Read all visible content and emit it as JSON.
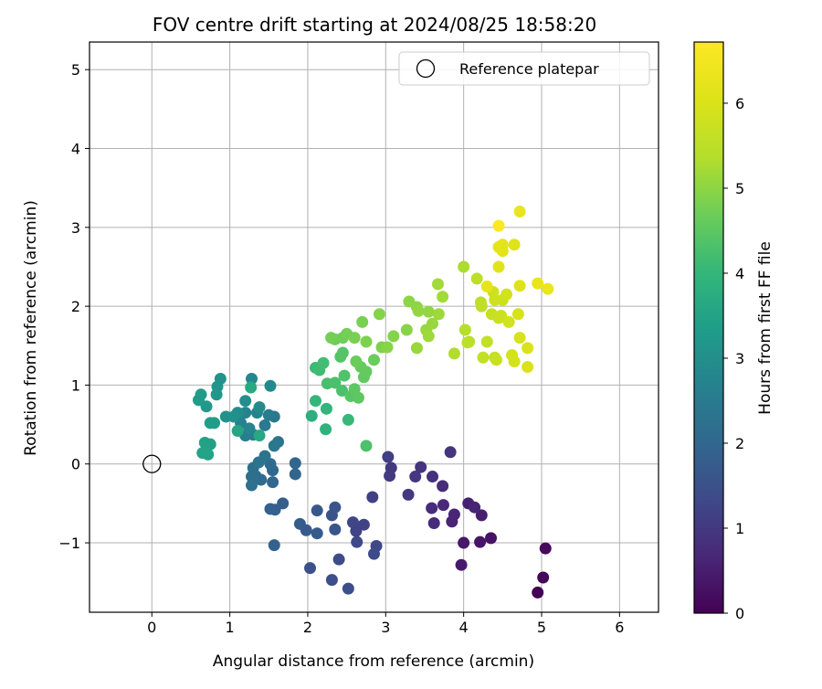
{
  "chart_data": {
    "type": "scatter",
    "title": "FOV centre drift starting at 2024/08/25 18:58:20",
    "xlabel": "Angular distance from reference (arcmin)",
    "ylabel": "Rotation from reference (arcmin)",
    "xlim": [
      -0.8,
      6.5
    ],
    "ylim": [
      -1.88,
      5.35
    ],
    "xticks": [
      0,
      1,
      2,
      3,
      4,
      5,
      6
    ],
    "yticks": [
      -1,
      0,
      1,
      2,
      3,
      4,
      5
    ],
    "xtick_labels": [
      "0",
      "1",
      "2",
      "3",
      "4",
      "5",
      "6"
    ],
    "ytick_labels": [
      "−1",
      "0",
      "1",
      "2",
      "3",
      "4",
      "5"
    ],
    "grid": true,
    "legend": {
      "placement": "top-right",
      "entries": [
        "Reference platepar"
      ]
    },
    "reference_point": {
      "x": 0,
      "y": 0,
      "label": "Reference platepar"
    },
    "colorbar": {
      "label": "Hours from first FF file",
      "colormap": "viridis",
      "range": [
        0,
        6.72
      ],
      "ticks": [
        0,
        1,
        2,
        3,
        4,
        5,
        6
      ],
      "tick_labels": [
        "0",
        "1",
        "2",
        "3",
        "4",
        "5",
        "6"
      ]
    },
    "points": [
      {
        "x": 4.95,
        "y": -1.63,
        "h": 0.0
      },
      {
        "x": 5.02,
        "y": -1.44,
        "h": 0.1
      },
      {
        "x": 5.05,
        "y": -1.07,
        "h": 0.15
      },
      {
        "x": 4.35,
        "y": -0.94,
        "h": 0.3
      },
      {
        "x": 4.21,
        "y": -0.99,
        "h": 0.35
      },
      {
        "x": 4.0,
        "y": -1.0,
        "h": 0.4
      },
      {
        "x": 3.97,
        "y": -1.28,
        "h": 0.45
      },
      {
        "x": 4.23,
        "y": -0.65,
        "h": 0.5
      },
      {
        "x": 4.06,
        "y": -0.5,
        "h": 0.55
      },
      {
        "x": 4.14,
        "y": -0.55,
        "h": 0.6
      },
      {
        "x": 3.85,
        "y": -0.73,
        "h": 0.6
      },
      {
        "x": 3.88,
        "y": -0.64,
        "h": 0.65
      },
      {
        "x": 3.74,
        "y": -0.52,
        "h": 0.7
      },
      {
        "x": 3.62,
        "y": -0.75,
        "h": 0.75
      },
      {
        "x": 3.59,
        "y": -0.56,
        "h": 0.75
      },
      {
        "x": 3.73,
        "y": -0.28,
        "h": 0.8
      },
      {
        "x": 3.6,
        "y": -0.16,
        "h": 0.85
      },
      {
        "x": 3.45,
        "y": -0.04,
        "h": 0.9
      },
      {
        "x": 3.83,
        "y": 0.15,
        "h": 0.9
      },
      {
        "x": 3.38,
        "y": -0.16,
        "h": 0.95
      },
      {
        "x": 3.29,
        "y": -0.39,
        "h": 1.0
      },
      {
        "x": 3.07,
        "y": -0.05,
        "h": 1.0
      },
      {
        "x": 3.05,
        "y": -0.15,
        "h": 1.05
      },
      {
        "x": 3.03,
        "y": 0.09,
        "h": 1.1
      },
      {
        "x": 2.83,
        "y": -0.42,
        "h": 1.15
      },
      {
        "x": 2.72,
        "y": -0.77,
        "h": 1.2
      },
      {
        "x": 2.62,
        "y": -0.85,
        "h": 1.2
      },
      {
        "x": 2.58,
        "y": -0.74,
        "h": 1.25
      },
      {
        "x": 2.63,
        "y": -0.99,
        "h": 1.3
      },
      {
        "x": 2.88,
        "y": -1.04,
        "h": 1.3
      },
      {
        "x": 2.85,
        "y": -1.14,
        "h": 1.35
      },
      {
        "x": 2.4,
        "y": -1.21,
        "h": 1.4
      },
      {
        "x": 2.31,
        "y": -1.47,
        "h": 1.45
      },
      {
        "x": 2.52,
        "y": -1.58,
        "h": 1.45
      },
      {
        "x": 2.03,
        "y": -1.32,
        "h": 1.5
      },
      {
        "x": 2.31,
        "y": -0.65,
        "h": 1.55
      },
      {
        "x": 2.35,
        "y": -0.55,
        "h": 1.6
      },
      {
        "x": 2.35,
        "y": -0.83,
        "h": 1.6
      },
      {
        "x": 2.12,
        "y": -0.59,
        "h": 1.65
      },
      {
        "x": 2.12,
        "y": -0.88,
        "h": 1.7
      },
      {
        "x": 1.98,
        "y": -0.84,
        "h": 1.7
      },
      {
        "x": 1.9,
        "y": -0.76,
        "h": 1.75
      },
      {
        "x": 1.68,
        "y": -0.5,
        "h": 1.8
      },
      {
        "x": 1.58,
        "y": -0.58,
        "h": 1.85
      },
      {
        "x": 1.52,
        "y": -0.57,
        "h": 1.85
      },
      {
        "x": 1.57,
        "y": -1.03,
        "h": 1.9
      },
      {
        "x": 1.84,
        "y": -0.13,
        "h": 1.95
      },
      {
        "x": 1.84,
        "y": 0.01,
        "h": 2.0
      },
      {
        "x": 1.55,
        "y": -0.23,
        "h": 2.0
      },
      {
        "x": 1.55,
        "y": -0.08,
        "h": 2.05
      },
      {
        "x": 1.52,
        "y": 0.0,
        "h": 2.1
      },
      {
        "x": 1.4,
        "y": -0.2,
        "h": 2.1
      },
      {
        "x": 1.33,
        "y": -0.15,
        "h": 2.15
      },
      {
        "x": 1.3,
        "y": -0.05,
        "h": 2.2
      },
      {
        "x": 1.28,
        "y": -0.16,
        "h": 2.2
      },
      {
        "x": 1.28,
        "y": -0.27,
        "h": 2.25
      },
      {
        "x": 1.37,
        "y": 0.02,
        "h": 2.3
      },
      {
        "x": 1.45,
        "y": 0.1,
        "h": 2.3
      },
      {
        "x": 1.62,
        "y": 0.28,
        "h": 2.35
      },
      {
        "x": 1.57,
        "y": 0.23,
        "h": 2.4
      },
      {
        "x": 1.57,
        "y": 0.6,
        "h": 2.4
      },
      {
        "x": 1.45,
        "y": 0.49,
        "h": 2.45
      },
      {
        "x": 1.5,
        "y": 0.62,
        "h": 2.5
      },
      {
        "x": 1.2,
        "y": 0.36,
        "h": 2.55
      },
      {
        "x": 1.3,
        "y": 0.37,
        "h": 2.6
      },
      {
        "x": 1.14,
        "y": 0.52,
        "h": 2.65
      },
      {
        "x": 1.2,
        "y": 0.65,
        "h": 2.7
      },
      {
        "x": 1.25,
        "y": 0.45,
        "h": 2.75
      },
      {
        "x": 1.35,
        "y": 0.65,
        "h": 2.75
      },
      {
        "x": 1.28,
        "y": 1.08,
        "h": 2.8
      },
      {
        "x": 1.52,
        "y": 0.99,
        "h": 2.85
      },
      {
        "x": 1.38,
        "y": 0.72,
        "h": 2.9
      },
      {
        "x": 1.1,
        "y": 0.65,
        "h": 2.95
      },
      {
        "x": 1.2,
        "y": 0.8,
        "h": 3.0
      },
      {
        "x": 1.05,
        "y": 0.6,
        "h": 3.05
      },
      {
        "x": 0.95,
        "y": 0.6,
        "h": 3.05
      },
      {
        "x": 0.88,
        "y": 1.08,
        "h": 3.1
      },
      {
        "x": 0.84,
        "y": 0.98,
        "h": 3.15
      },
      {
        "x": 0.83,
        "y": 0.88,
        "h": 3.2
      },
      {
        "x": 0.7,
        "y": 0.73,
        "h": 3.25
      },
      {
        "x": 0.6,
        "y": 0.81,
        "h": 3.3
      },
      {
        "x": 0.63,
        "y": 0.88,
        "h": 3.3
      },
      {
        "x": 0.75,
        "y": 0.52,
        "h": 3.35
      },
      {
        "x": 0.8,
        "y": 0.52,
        "h": 3.4
      },
      {
        "x": 0.75,
        "y": 0.25,
        "h": 3.45
      },
      {
        "x": 0.68,
        "y": 0.27,
        "h": 3.45
      },
      {
        "x": 0.72,
        "y": 0.12,
        "h": 3.5
      },
      {
        "x": 0.65,
        "y": 0.14,
        "h": 3.5
      },
      {
        "x": 1.1,
        "y": 0.42,
        "h": 3.55
      },
      {
        "x": 1.38,
        "y": 0.36,
        "h": 3.6
      },
      {
        "x": 1.27,
        "y": 0.97,
        "h": 3.65
      },
      {
        "x": 2.05,
        "y": 0.61,
        "h": 3.8
      },
      {
        "x": 2.23,
        "y": 0.44,
        "h": 3.9
      },
      {
        "x": 2.24,
        "y": 0.7,
        "h": 3.95
      },
      {
        "x": 2.1,
        "y": 0.8,
        "h": 4.0
      },
      {
        "x": 2.52,
        "y": 0.56,
        "h": 4.05
      },
      {
        "x": 2.1,
        "y": 1.22,
        "h": 4.1
      },
      {
        "x": 2.15,
        "y": 1.19,
        "h": 4.15
      },
      {
        "x": 2.2,
        "y": 1.28,
        "h": 4.2
      },
      {
        "x": 2.25,
        "y": 1.02,
        "h": 4.25
      },
      {
        "x": 2.35,
        "y": 1.03,
        "h": 4.3
      },
      {
        "x": 2.44,
        "y": 0.93,
        "h": 4.3
      },
      {
        "x": 2.47,
        "y": 1.12,
        "h": 4.35
      },
      {
        "x": 2.45,
        "y": 1.41,
        "h": 4.4
      },
      {
        "x": 2.42,
        "y": 1.36,
        "h": 4.4
      },
      {
        "x": 2.55,
        "y": 0.86,
        "h": 4.45
      },
      {
        "x": 2.6,
        "y": 0.95,
        "h": 4.5
      },
      {
        "x": 2.65,
        "y": 0.84,
        "h": 4.5
      },
      {
        "x": 2.72,
        "y": 1.1,
        "h": 4.55
      },
      {
        "x": 2.68,
        "y": 1.23,
        "h": 4.6
      },
      {
        "x": 2.75,
        "y": 1.17,
        "h": 4.6
      },
      {
        "x": 2.85,
        "y": 1.32,
        "h": 4.65
      },
      {
        "x": 2.62,
        "y": 1.3,
        "h": 4.65
      },
      {
        "x": 2.45,
        "y": 1.6,
        "h": 4.7
      },
      {
        "x": 2.35,
        "y": 1.58,
        "h": 4.7
      },
      {
        "x": 2.3,
        "y": 1.6,
        "h": 4.75
      },
      {
        "x": 2.5,
        "y": 1.65,
        "h": 4.75
      },
      {
        "x": 2.6,
        "y": 1.6,
        "h": 4.8
      },
      {
        "x": 2.7,
        "y": 1.8,
        "h": 4.8
      },
      {
        "x": 2.75,
        "y": 1.55,
        "h": 4.85
      },
      {
        "x": 2.95,
        "y": 1.48,
        "h": 4.85
      },
      {
        "x": 2.92,
        "y": 1.9,
        "h": 4.9
      },
      {
        "x": 3.1,
        "y": 1.62,
        "h": 4.9
      },
      {
        "x": 3.02,
        "y": 1.48,
        "h": 4.95
      },
      {
        "x": 3.27,
        "y": 1.7,
        "h": 4.95
      },
      {
        "x": 3.3,
        "y": 2.06,
        "h": 5.0
      },
      {
        "x": 3.4,
        "y": 1.99,
        "h": 5.0
      },
      {
        "x": 3.42,
        "y": 1.94,
        "h": 5.05
      },
      {
        "x": 3.55,
        "y": 1.93,
        "h": 5.05
      },
      {
        "x": 3.6,
        "y": 1.78,
        "h": 5.1
      },
      {
        "x": 3.52,
        "y": 1.7,
        "h": 5.1
      },
      {
        "x": 3.4,
        "y": 1.47,
        "h": 5.1
      },
      {
        "x": 3.55,
        "y": 1.62,
        "h": 5.15
      },
      {
        "x": 3.68,
        "y": 1.9,
        "h": 5.15
      },
      {
        "x": 3.73,
        "y": 2.12,
        "h": 5.2
      },
      {
        "x": 3.67,
        "y": 2.28,
        "h": 5.2
      },
      {
        "x": 2.75,
        "y": 0.23,
        "h": 4.3
      },
      {
        "x": 4.0,
        "y": 2.5,
        "h": 5.3
      },
      {
        "x": 3.88,
        "y": 1.4,
        "h": 5.35
      },
      {
        "x": 4.02,
        "y": 1.7,
        "h": 5.4
      },
      {
        "x": 4.07,
        "y": 1.55,
        "h": 5.45
      },
      {
        "x": 4.05,
        "y": 1.54,
        "h": 5.5
      },
      {
        "x": 4.17,
        "y": 2.35,
        "h": 5.5
      },
      {
        "x": 4.23,
        "y": 2.0,
        "h": 5.55
      },
      {
        "x": 4.22,
        "y": 2.05,
        "h": 5.55
      },
      {
        "x": 4.3,
        "y": 1.55,
        "h": 5.6
      },
      {
        "x": 4.25,
        "y": 1.35,
        "h": 5.6
      },
      {
        "x": 4.36,
        "y": 1.9,
        "h": 5.65
      },
      {
        "x": 4.4,
        "y": 1.35,
        "h": 5.65
      },
      {
        "x": 4.42,
        "y": 1.32,
        "h": 5.7
      },
      {
        "x": 4.45,
        "y": 1.85,
        "h": 5.7
      },
      {
        "x": 4.48,
        "y": 1.88,
        "h": 5.75
      },
      {
        "x": 4.5,
        "y": 2.08,
        "h": 5.75
      },
      {
        "x": 4.4,
        "y": 2.08,
        "h": 5.8
      },
      {
        "x": 4.38,
        "y": 2.18,
        "h": 5.8
      },
      {
        "x": 4.55,
        "y": 2.15,
        "h": 5.85
      },
      {
        "x": 4.58,
        "y": 1.8,
        "h": 5.85
      },
      {
        "x": 4.62,
        "y": 1.38,
        "h": 5.9
      },
      {
        "x": 4.65,
        "y": 1.3,
        "h": 5.9
      },
      {
        "x": 4.72,
        "y": 1.6,
        "h": 5.95
      },
      {
        "x": 4.7,
        "y": 1.9,
        "h": 5.95
      },
      {
        "x": 4.82,
        "y": 1.47,
        "h": 6.0
      },
      {
        "x": 4.82,
        "y": 1.23,
        "h": 6.0
      },
      {
        "x": 4.72,
        "y": 2.26,
        "h": 6.05
      },
      {
        "x": 4.65,
        "y": 2.78,
        "h": 6.1
      },
      {
        "x": 4.5,
        "y": 2.7,
        "h": 6.15
      },
      {
        "x": 4.45,
        "y": 2.5,
        "h": 6.15
      },
      {
        "x": 4.45,
        "y": 2.75,
        "h": 6.2
      },
      {
        "x": 4.5,
        "y": 2.78,
        "h": 6.2
      },
      {
        "x": 4.3,
        "y": 2.25,
        "h": 6.25
      },
      {
        "x": 4.95,
        "y": 2.29,
        "h": 6.3
      },
      {
        "x": 5.08,
        "y": 2.22,
        "h": 6.35
      },
      {
        "x": 4.72,
        "y": 3.2,
        "h": 6.3
      },
      {
        "x": 4.45,
        "y": 3.02,
        "h": 6.72
      }
    ]
  }
}
